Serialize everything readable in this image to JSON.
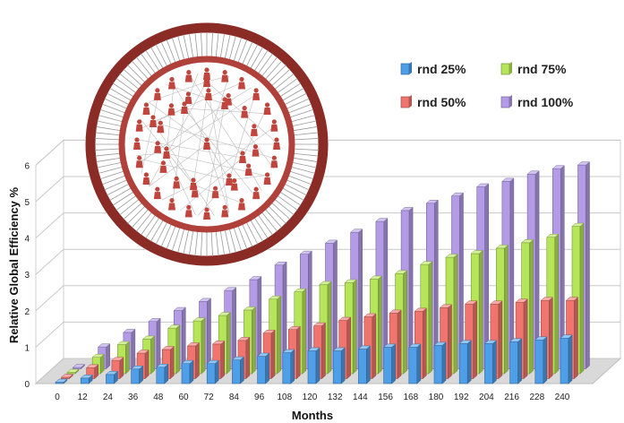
{
  "chart_data": {
    "type": "bar",
    "title": "",
    "xlabel": "Months",
    "ylabel": "Relative Global Efficiency %",
    "ylim": [
      0,
      6
    ],
    "yticks": [
      "0",
      "1",
      "2",
      "3",
      "4",
      "5",
      "6"
    ],
    "categories": [
      "0",
      "12",
      "24",
      "36",
      "48",
      "60",
      "72",
      "84",
      "96",
      "108",
      "120",
      "132",
      "144",
      "156",
      "168",
      "180",
      "192",
      "204",
      "216",
      "228",
      "240"
    ],
    "legend_position": "top-right",
    "grid": true,
    "series": [
      {
        "name": "rnd 25%",
        "color": "#4f9fe8",
        "values": [
          0,
          0.15,
          0.25,
          0.4,
          0.45,
          0.55,
          0.55,
          0.65,
          0.75,
          0.85,
          0.9,
          0.9,
          0.95,
          1.0,
          1.0,
          1.05,
          1.1,
          1.1,
          1.15,
          1.2,
          1.25
        ]
      },
      {
        "name": "rnd 50%",
        "color": "#f0756e",
        "values": [
          0,
          0.3,
          0.5,
          0.7,
          0.8,
          0.9,
          0.95,
          1.05,
          1.25,
          1.35,
          1.45,
          1.6,
          1.7,
          1.8,
          1.85,
          1.95,
          2.05,
          2.05,
          2.1,
          2.15,
          2.15
        ]
      },
      {
        "name": "rnd 75%",
        "color": "#b6e55a",
        "values": [
          0,
          0.45,
          0.8,
          0.95,
          1.25,
          1.45,
          1.6,
          1.75,
          2.05,
          2.25,
          2.45,
          2.5,
          2.6,
          2.75,
          3.0,
          3.2,
          3.3,
          3.45,
          3.6,
          3.75,
          4.05
        ]
      },
      {
        "name": "rnd 100%",
        "color": "#b39be6",
        "values": [
          0,
          0.6,
          1.0,
          1.3,
          1.6,
          1.85,
          2.15,
          2.45,
          2.85,
          3.15,
          3.45,
          3.75,
          4.05,
          4.35,
          4.55,
          4.75,
          5.0,
          5.15,
          5.35,
          5.5,
          5.6
        ]
      }
    ]
  },
  "network_image": {
    "icon": "network-graph-icon"
  }
}
